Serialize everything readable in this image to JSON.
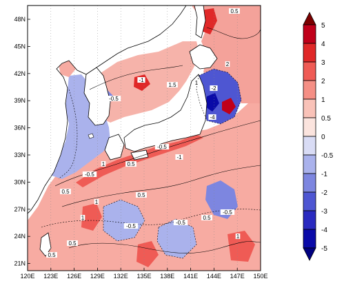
{
  "map": {
    "lat_labels": [
      "48N",
      "45N",
      "42N",
      "39N",
      "36N",
      "33N",
      "30N",
      "27N",
      "24N",
      "21N"
    ],
    "lon_labels": [
      "120E",
      "123E",
      "126E",
      "129E",
      "132E",
      "135E",
      "138E",
      "141E",
      "144E",
      "147E",
      "150E"
    ],
    "lat_range": [
      20,
      50
    ],
    "lon_range": [
      120,
      150
    ],
    "grid": "dotted",
    "coastline_color": "#000000",
    "contour_labels": [
      "0.5",
      "-0.5",
      "1",
      "-1",
      "2",
      "-2",
      "1.5",
      "-4",
      "0.5",
      "-0.5",
      "1",
      "0.5",
      "-0.5",
      "-1",
      "0.5",
      "1",
      "-0.5",
      "0.5",
      "-0.5",
      "1",
      "0.5",
      "-0.5",
      "1",
      "0.5"
    ]
  },
  "colorbar": {
    "levels": [
      "5",
      "4",
      "3",
      "2",
      "1",
      "0.5",
      "0",
      "-0.5",
      "-1",
      "-2",
      "-3",
      "-4",
      "-5"
    ],
    "colors": [
      "#7b0000",
      "#c0001a",
      "#e02828",
      "#ef5b55",
      "#f58f85",
      "#f9c2b8",
      "#fbe4de",
      "#d9dcf5",
      "#aab2ec",
      "#7d86e0",
      "#4e56d2",
      "#2a2ac0",
      "#0a0aa8",
      "#000080"
    ]
  }
}
